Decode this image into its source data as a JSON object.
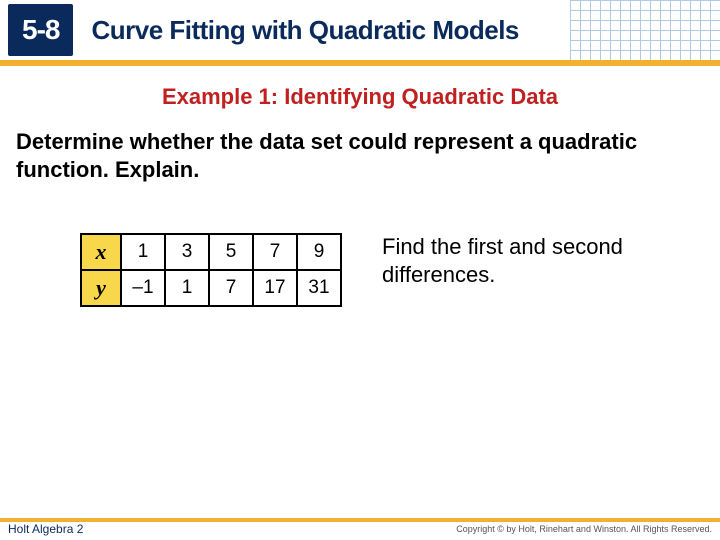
{
  "header": {
    "lesson": "5-8",
    "title": "Curve Fitting with Quadratic Models"
  },
  "example": {
    "title": "Example 1: Identifying Quadratic Data",
    "prompt": "Determine whether the data set could represent a quadratic function. Explain."
  },
  "table": {
    "row_labels": [
      "x",
      "y"
    ],
    "x": [
      "1",
      "3",
      "5",
      "7",
      "9"
    ],
    "y": [
      "–1",
      "1",
      "7",
      "17",
      "31"
    ],
    "header_bg": "#f8d84a"
  },
  "hint": "Find the first and second differences.",
  "footer": {
    "left": "Holt Algebra 2",
    "right": "Copyright © by Holt, Rinehart and Winston. All Rights Reserved."
  },
  "colors": {
    "navy": "#0a2a5c",
    "red": "#c02020",
    "yellow_bar": "#f0b030"
  }
}
